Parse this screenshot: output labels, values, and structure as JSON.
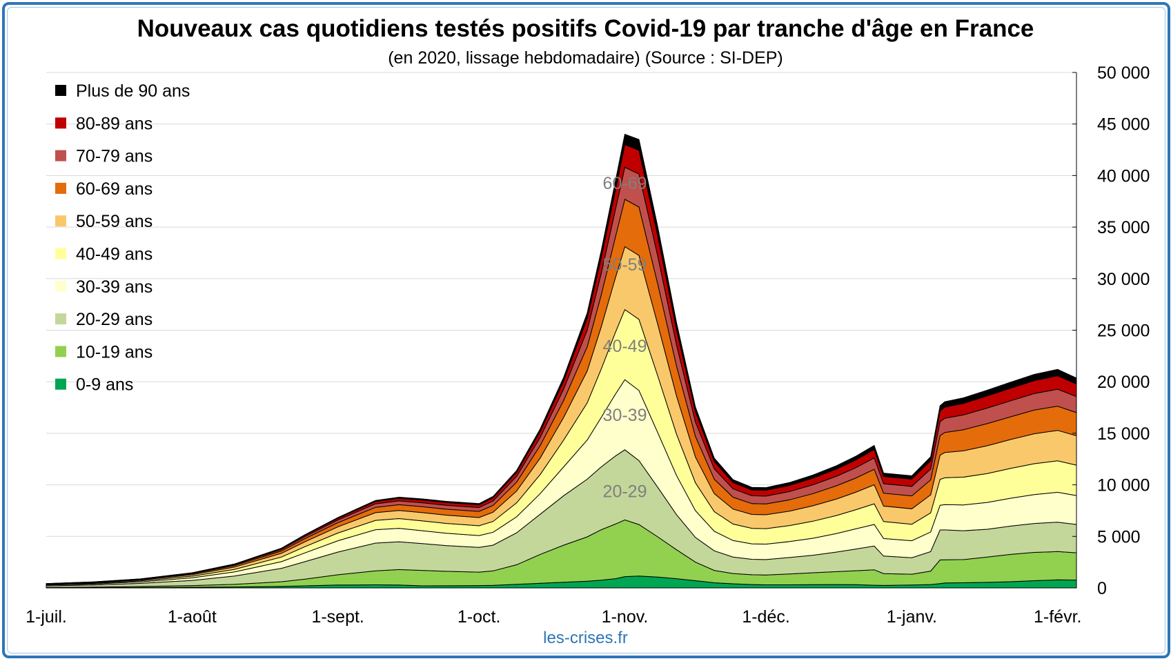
{
  "title": "Nouveaux cas quotidiens testés positifs Covid-19 par tranche d'âge en France",
  "subtitle": "(en 2020, lissage hebdomadaire) (Source : SI-DEP)",
  "source": "les-crises.fr",
  "chart_data": {
    "type": "area",
    "stacked": true,
    "title": "Nouveaux cas quotidiens testés positifs Covid-19 par tranche d'âge en France",
    "subtitle": "(en 2020, lissage hebdomadaire) (Source : SI-DEP)",
    "x_labels": [
      "1-juil.",
      "1-août",
      "1-sept.",
      "1-oct.",
      "1-nov.",
      "1-déc.",
      "1-janv.",
      "1-févr."
    ],
    "x_label_days": [
      0,
      31,
      62,
      92,
      123,
      153,
      184,
      215
    ],
    "x_range_days": [
      0,
      219
    ],
    "y_axis_position": "right",
    "ylim": [
      0,
      50000
    ],
    "y_ticks": [
      "0",
      "5 000",
      "10 000",
      "15 000",
      "20 000",
      "25 000",
      "30 000",
      "35 000",
      "40 000",
      "45 000",
      "50 000"
    ],
    "grid": true,
    "legend_position": "top-left",
    "x_days": [
      0,
      10,
      20,
      31,
      40,
      50,
      55,
      62,
      70,
      75,
      80,
      85,
      92,
      95,
      100,
      105,
      110,
      115,
      118,
      121,
      123,
      126,
      130,
      134,
      138,
      142,
      146,
      150,
      153,
      158,
      163,
      168,
      172,
      176,
      178,
      184,
      188,
      190,
      191,
      195,
      200,
      205,
      210,
      215,
      219
    ],
    "series": [
      {
        "name": "0-9 ans",
        "color": "#00a651",
        "values": [
          10,
          20,
          40,
          70,
          100,
          150,
          200,
          280,
          300,
          280,
          200,
          210,
          230,
          250,
          350,
          450,
          550,
          650,
          750,
          900,
          1100,
          1150,
          1050,
          900,
          700,
          500,
          400,
          330,
          300,
          300,
          320,
          330,
          320,
          260,
          240,
          280,
          330,
          420,
          480,
          500,
          540,
          600,
          700,
          780,
          760
        ]
      },
      {
        "name": "10-19 ans",
        "color": "#92d050",
        "values": [
          40,
          60,
          100,
          160,
          250,
          450,
          650,
          1000,
          1350,
          1500,
          1500,
          1400,
          1300,
          1400,
          1900,
          2800,
          3600,
          4300,
          4900,
          5300,
          5500,
          5000,
          3900,
          2800,
          1800,
          1200,
          1000,
          950,
          950,
          1050,
          1150,
          1250,
          1350,
          1500,
          1150,
          1050,
          1300,
          2300,
          2250,
          2250,
          2450,
          2650,
          2750,
          2750,
          2650
        ]
      },
      {
        "name": "20-29 ans",
        "color": "#c4d79b",
        "values": [
          150,
          200,
          300,
          500,
          800,
          1300,
          1700,
          2200,
          2700,
          2700,
          2600,
          2500,
          2400,
          2500,
          3100,
          3900,
          4800,
          5600,
          6100,
          6600,
          6800,
          6200,
          4800,
          3400,
          2400,
          1900,
          1600,
          1500,
          1500,
          1600,
          1700,
          1900,
          2100,
          2300,
          1700,
          1600,
          1900,
          2900,
          2900,
          2800,
          2700,
          2750,
          2800,
          2850,
          2750
        ]
      },
      {
        "name": "30-39 ans",
        "color": "#ffffcc",
        "values": [
          80,
          100,
          150,
          250,
          400,
          650,
          850,
          1100,
          1300,
          1300,
          1250,
          1200,
          1150,
          1250,
          1550,
          2000,
          2800,
          3800,
          4800,
          6000,
          6800,
          6800,
          5300,
          3800,
          2600,
          1900,
          1600,
          1500,
          1500,
          1550,
          1650,
          1800,
          1950,
          2100,
          1700,
          1650,
          1900,
          2400,
          2450,
          2500,
          2600,
          2700,
          2800,
          2900,
          2800
        ]
      },
      {
        "name": "40-49 ans",
        "color": "#ffff99",
        "values": [
          50,
          70,
          100,
          160,
          250,
          450,
          600,
          750,
          900,
          950,
          950,
          950,
          950,
          1050,
          1350,
          1850,
          2600,
          3600,
          4700,
          6000,
          6800,
          6900,
          5500,
          4000,
          2700,
          1900,
          1600,
          1500,
          1500,
          1550,
          1650,
          1750,
          1850,
          2000,
          1650,
          1600,
          1850,
          2500,
          2600,
          2700,
          2800,
          2900,
          3000,
          3050,
          2950
        ]
      },
      {
        "name": "50-59 ans",
        "color": "#f9c86b",
        "values": [
          40,
          60,
          80,
          140,
          220,
          360,
          480,
          600,
          750,
          780,
          800,
          800,
          800,
          900,
          1150,
          1600,
          2200,
          3100,
          4100,
          5300,
          6100,
          6200,
          5000,
          3700,
          2500,
          1750,
          1450,
          1350,
          1350,
          1400,
          1500,
          1600,
          1700,
          1850,
          1500,
          1500,
          1750,
          2350,
          2450,
          2550,
          2700,
          2800,
          2900,
          2950,
          2850
        ]
      },
      {
        "name": "60-69 ans",
        "color": "#e46c0a",
        "values": [
          25,
          40,
          50,
          90,
          140,
          230,
          310,
          400,
          520,
          560,
          580,
          580,
          590,
          660,
          860,
          1200,
          1650,
          2350,
          3100,
          3950,
          4600,
          4700,
          3900,
          2900,
          2000,
          1400,
          1150,
          1050,
          1050,
          1100,
          1180,
          1280,
          1370,
          1500,
          1250,
          1250,
          1450,
          1900,
          1950,
          2050,
          2150,
          2200,
          2300,
          2350,
          2250
        ]
      },
      {
        "name": "70-79 ans",
        "color": "#c0504d",
        "values": [
          15,
          20,
          30,
          55,
          85,
          140,
          190,
          260,
          340,
          370,
          380,
          380,
          380,
          430,
          560,
          800,
          1100,
          1600,
          2100,
          2650,
          3100,
          3200,
          2700,
          2050,
          1400,
          1000,
          820,
          760,
          760,
          800,
          860,
          930,
          1000,
          1100,
          920,
          920,
          1060,
          1350,
          1380,
          1430,
          1500,
          1550,
          1600,
          1650,
          1550
        ]
      },
      {
        "name": "80-89 ans",
        "color": "#c00000",
        "values": [
          10,
          15,
          20,
          35,
          55,
          90,
          130,
          170,
          230,
          250,
          260,
          260,
          260,
          300,
          390,
          560,
          780,
          1150,
          1500,
          1900,
          2200,
          2300,
          1950,
          1480,
          1000,
          720,
          600,
          560,
          560,
          590,
          640,
          690,
          750,
          820,
          700,
          700,
          800,
          1050,
          1080,
          1120,
          1180,
          1220,
          1260,
          1300,
          1220
        ]
      },
      {
        "name": "Plus de 90 ans",
        "color": "#000000",
        "values": [
          5,
          5,
          10,
          15,
          25,
          40,
          55,
          75,
          100,
          110,
          115,
          120,
          120,
          140,
          180,
          260,
          360,
          530,
          700,
          880,
          1000,
          1050,
          900,
          680,
          460,
          330,
          280,
          260,
          260,
          280,
          300,
          330,
          360,
          390,
          330,
          330,
          380,
          500,
          520,
          540,
          560,
          580,
          600,
          620,
          580
        ]
      }
    ],
    "area_labels": [
      {
        "text": "20-29",
        "x_day": 123,
        "y": 9400
      },
      {
        "text": "30-39",
        "x_day": 123,
        "y": 16800
      },
      {
        "text": "40-49",
        "x_day": 123,
        "y": 23500
      },
      {
        "text": "50-59",
        "x_day": 123,
        "y": 31400
      },
      {
        "text": "60-69",
        "x_day": 123,
        "y": 39300
      }
    ]
  }
}
